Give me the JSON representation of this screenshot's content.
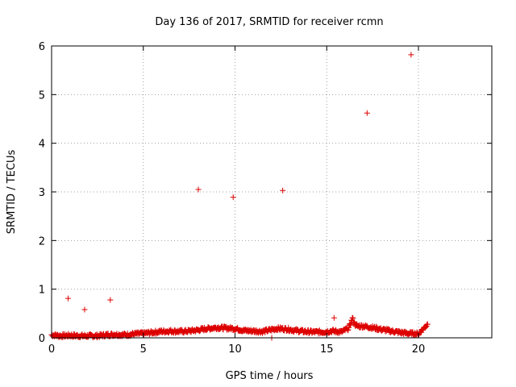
{
  "chart_data": {
    "type": "scatter",
    "title": "Day 136 of 2017, SRMTID for receiver rcmn",
    "xlabel": "GPS time / hours",
    "ylabel": "SRMTID / TECUs",
    "xlim": [
      0,
      24
    ],
    "ylim": [
      0,
      6
    ],
    "xticks": [
      0,
      5,
      10,
      15,
      20
    ],
    "yticks": [
      0,
      1,
      2,
      3,
      4,
      5,
      6
    ],
    "grid": true,
    "marker": "+",
    "colors": {
      "series": "#dd0000",
      "grid": "#a0a0a0",
      "axis": "#000000"
    },
    "series": [
      {
        "name": "SRMTID",
        "points": [
          [
            0.9,
            0.81
          ],
          [
            1.8,
            0.58
          ],
          [
            3.2,
            0.78
          ],
          [
            8.0,
            3.05
          ],
          [
            9.9,
            2.89
          ],
          [
            12.6,
            3.03
          ],
          [
            17.2,
            4.62
          ],
          [
            19.6,
            5.82
          ],
          [
            15.4,
            0.41
          ],
          [
            12.0,
            0.0
          ]
        ],
        "baseline": [
          [
            0.0,
            0.06
          ],
          [
            0.5,
            0.04
          ],
          [
            1.0,
            0.05
          ],
          [
            1.5,
            0.04
          ],
          [
            2.0,
            0.04
          ],
          [
            2.5,
            0.04
          ],
          [
            3.0,
            0.06
          ],
          [
            3.5,
            0.07
          ],
          [
            4.0,
            0.06
          ],
          [
            4.5,
            0.08
          ],
          [
            5.0,
            0.09
          ],
          [
            5.5,
            0.11
          ],
          [
            6.0,
            0.13
          ],
          [
            6.5,
            0.14
          ],
          [
            7.0,
            0.13
          ],
          [
            7.5,
            0.14
          ],
          [
            8.0,
            0.16
          ],
          [
            8.5,
            0.19
          ],
          [
            9.0,
            0.21
          ],
          [
            9.5,
            0.2
          ],
          [
            10.0,
            0.19
          ],
          [
            10.5,
            0.15
          ],
          [
            11.0,
            0.14
          ],
          [
            11.5,
            0.13
          ],
          [
            12.3,
            0.19
          ],
          [
            12.8,
            0.18
          ],
          [
            13.3,
            0.15
          ],
          [
            13.8,
            0.13
          ],
          [
            14.3,
            0.12
          ],
          [
            14.8,
            0.12
          ],
          [
            15.3,
            0.14
          ],
          [
            15.8,
            0.12
          ],
          [
            16.2,
            0.2
          ],
          [
            16.4,
            0.4
          ],
          [
            16.6,
            0.24
          ],
          [
            17.0,
            0.24
          ],
          [
            17.5,
            0.21
          ],
          [
            18.0,
            0.17
          ],
          [
            18.5,
            0.14
          ],
          [
            19.0,
            0.11
          ],
          [
            19.5,
            0.09
          ],
          [
            20.0,
            0.08
          ],
          [
            20.3,
            0.2
          ],
          [
            20.5,
            0.28
          ]
        ]
      }
    ]
  }
}
